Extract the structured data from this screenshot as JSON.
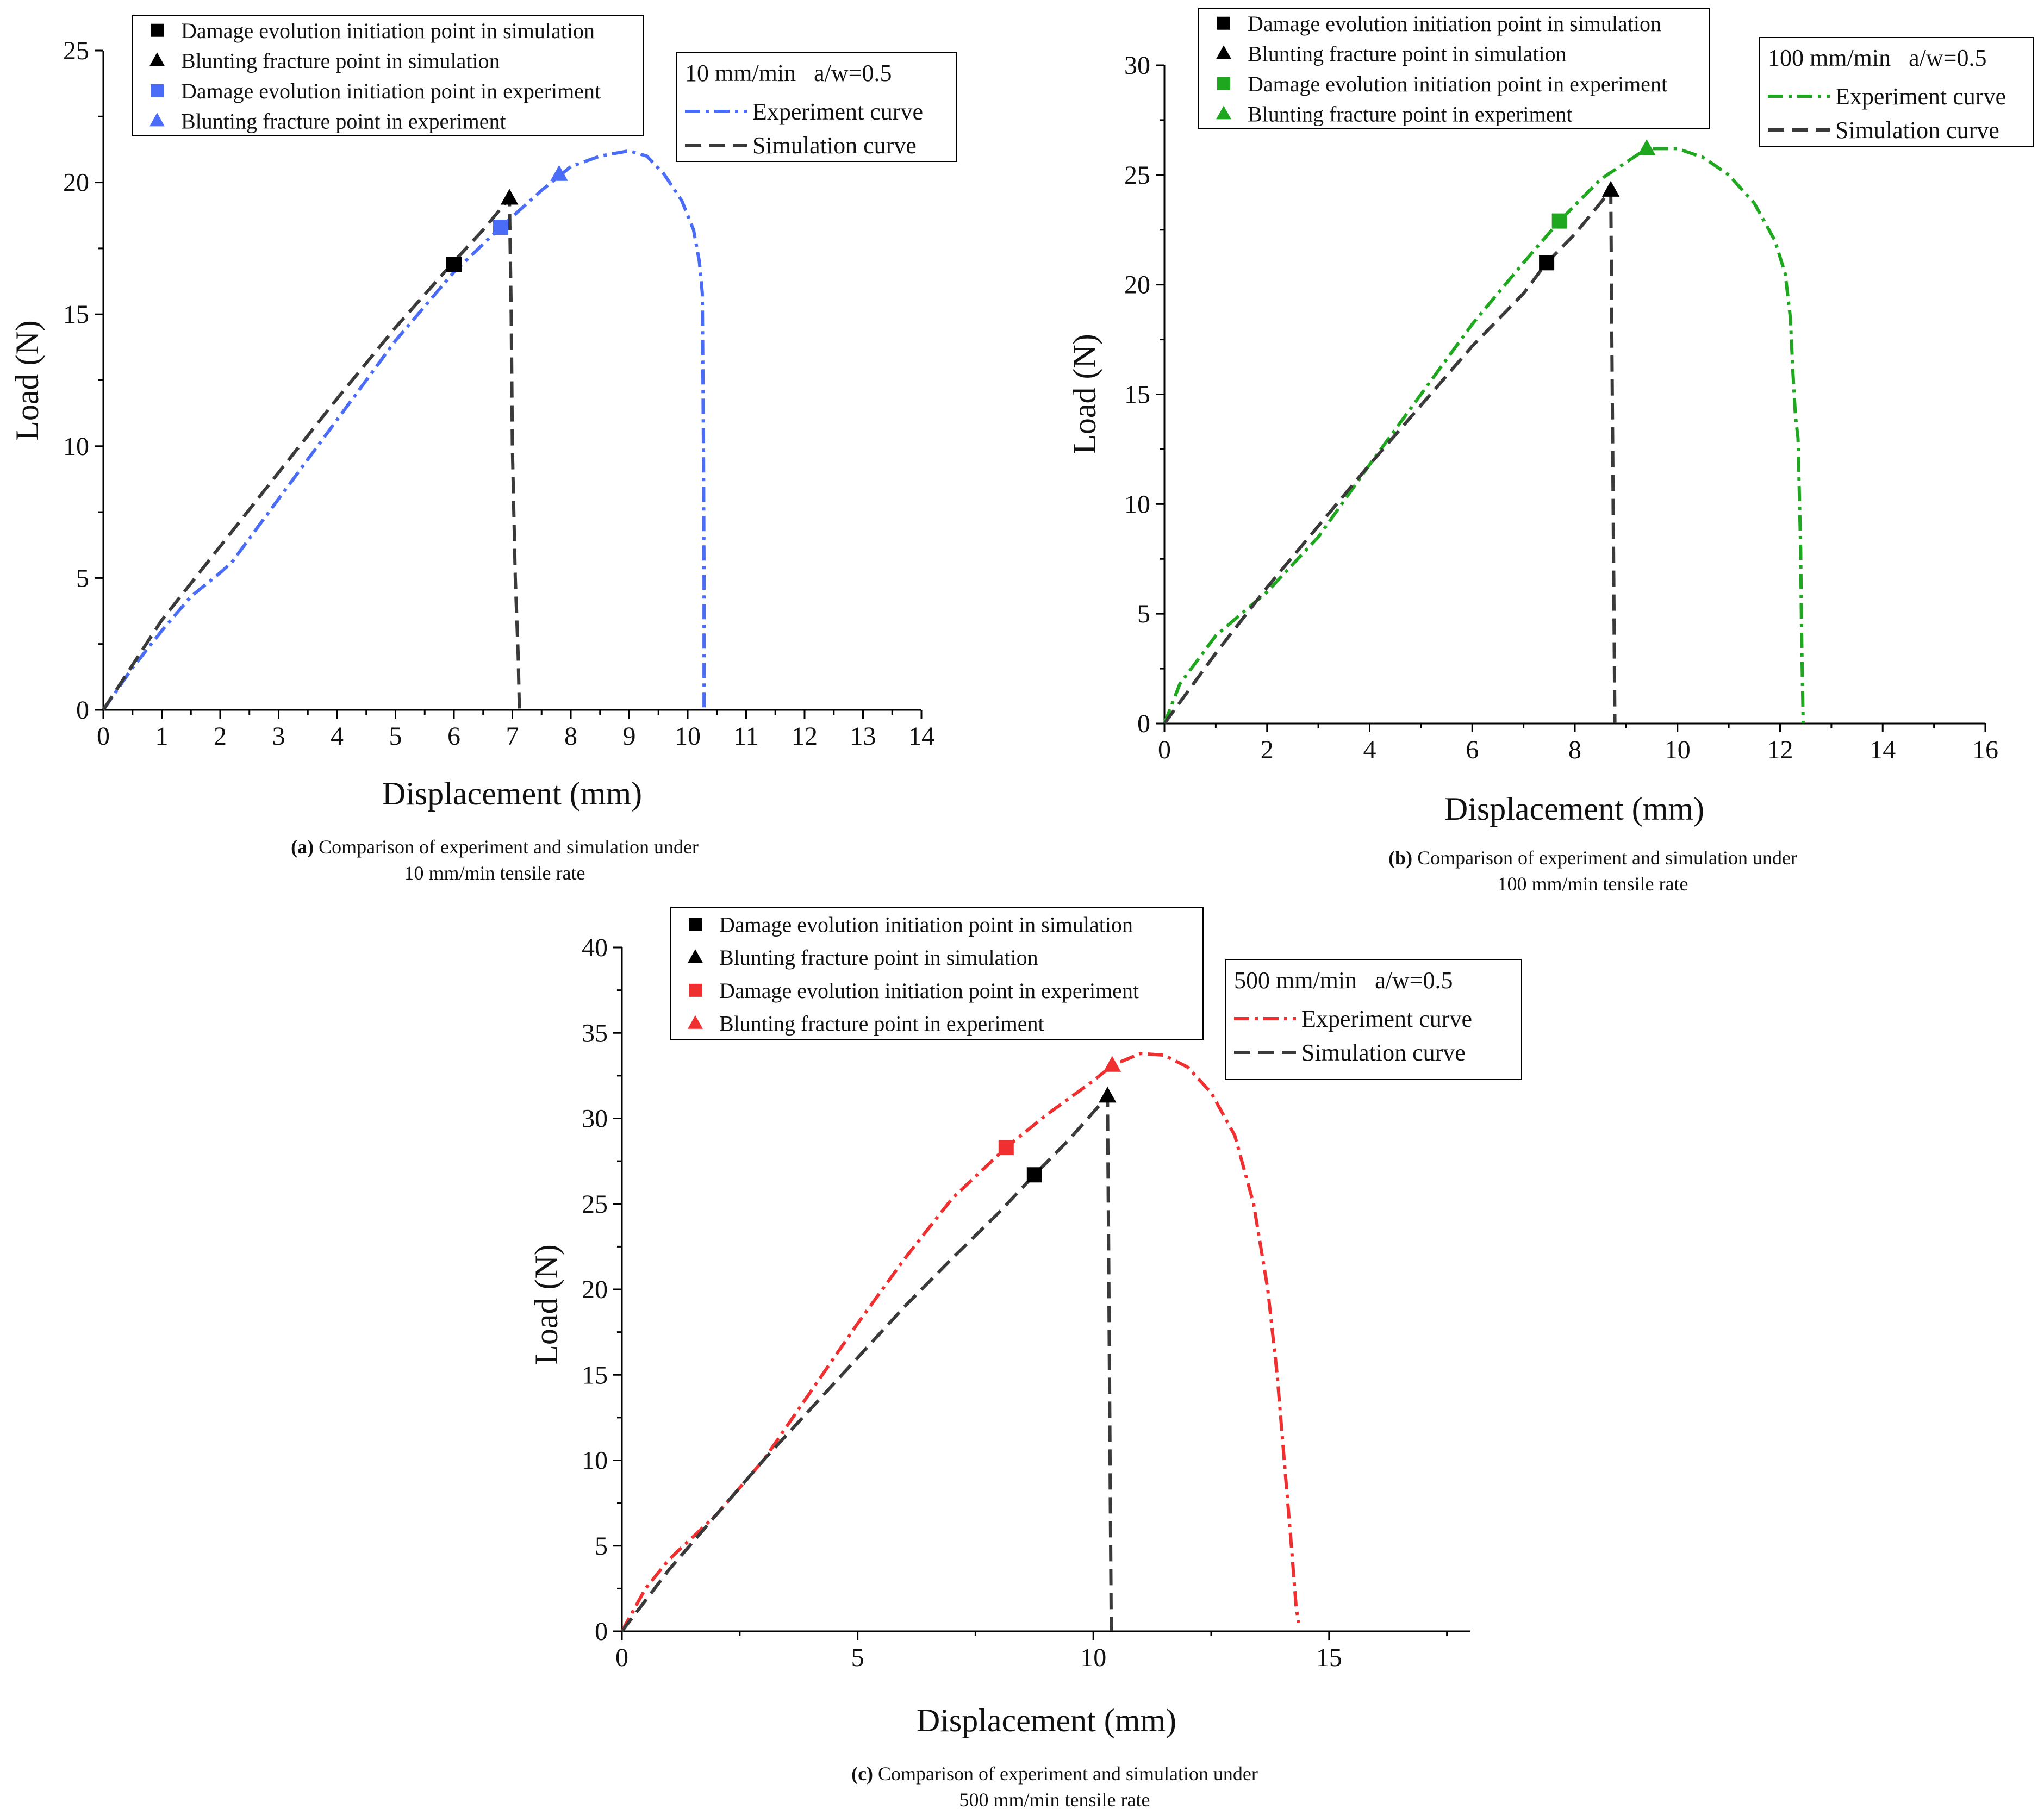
{
  "chart_data": [
    {
      "panel": "a",
      "type": "line",
      "xlabel": "Displacement (mm)",
      "ylabel": "Load (N)",
      "xlim": [
        0,
        14
      ],
      "ylim": [
        0,
        25
      ],
      "xticks": [
        0,
        1,
        2,
        3,
        4,
        5,
        6,
        7,
        8,
        9,
        10,
        11,
        12,
        13,
        14
      ],
      "yticks": [
        0,
        5,
        10,
        15,
        20,
        25
      ],
      "accent_color": "#4a6cf7",
      "info_title": "10 mm/min   a/w=0.5",
      "info_legend": [
        {
          "label": "Experiment curve",
          "style": "dashdot",
          "color": "#4a6cf7"
        },
        {
          "label": "Simulation curve",
          "style": "dash",
          "color": "#3a3a3a"
        }
      ],
      "marker_legend": [
        {
          "label": "Damage evolution initiation point in simulation",
          "marker": "square",
          "color": "#000000"
        },
        {
          "label": "Blunting fracture point in simulation",
          "marker": "triangle",
          "color": "#000000"
        },
        {
          "label": "Damage evolution initiation point in experiment",
          "marker": "square",
          "color": "#4a6cf7"
        },
        {
          "label": "Blunting fracture point in experiment",
          "marker": "triangle",
          "color": "#4a6cf7"
        }
      ],
      "series": [
        {
          "name": "Experiment curve",
          "color": "#4a6cf7",
          "style": "dashdot",
          "x": [
            0,
            0.5,
            1.0,
            1.5,
            2.0,
            2.2,
            3.0,
            4.0,
            5.0,
            6.0,
            6.8,
            7.5,
            8.0,
            8.5,
            9.0,
            9.3,
            9.6,
            9.9,
            10.1,
            10.2,
            10.25,
            10.27,
            10.28,
            10.28
          ],
          "y": [
            0,
            1.6,
            3.0,
            4.3,
            5.2,
            5.6,
            8.0,
            11.0,
            14.0,
            16.6,
            18.3,
            19.7,
            20.6,
            21.0,
            21.2,
            21.0,
            20.3,
            19.3,
            18.2,
            17.0,
            15.8,
            10.0,
            5.0,
            0
          ]
        },
        {
          "name": "Simulation curve",
          "color": "#3a3a3a",
          "style": "dash",
          "x": [
            0,
            1.0,
            2.0,
            3.0,
            4.0,
            5.0,
            6.0,
            6.5,
            6.95,
            6.98,
            7.0,
            7.05,
            7.1,
            7.12
          ],
          "y": [
            0,
            3.4,
            6.2,
            9.0,
            11.8,
            14.5,
            17.0,
            18.2,
            19.4,
            15.0,
            10.0,
            5.0,
            2.0,
            0
          ]
        }
      ],
      "markers": [
        {
          "name": "Damage evolution initiation point in simulation",
          "shape": "square",
          "color": "#000000",
          "x": 6.0,
          "y": 16.9
        },
        {
          "name": "Blunting fracture point in simulation",
          "shape": "triangle",
          "color": "#000000",
          "x": 6.95,
          "y": 19.4
        },
        {
          "name": "Damage evolution initiation point in experiment",
          "shape": "square",
          "color": "#4a6cf7",
          "x": 6.8,
          "y": 18.3
        },
        {
          "name": "Blunting fracture point in experiment",
          "shape": "triangle",
          "color": "#4a6cf7",
          "x": 7.8,
          "y": 20.3
        }
      ],
      "caption": {
        "tag": "(a)",
        "line1": " Comparison of experiment and simulation under",
        "line2": "10 mm/min tensile rate"
      }
    },
    {
      "panel": "b",
      "type": "line",
      "xlabel": "Displacement (mm)",
      "ylabel": "Load (N)",
      "xlim": [
        0,
        16
      ],
      "ylim": [
        0,
        30
      ],
      "xticks": [
        0,
        2,
        4,
        6,
        8,
        10,
        12,
        14,
        16
      ],
      "yticks": [
        0,
        5,
        10,
        15,
        20,
        25,
        30
      ],
      "accent_color": "#1fa81f",
      "info_title": "100 mm/min   a/w=0.5",
      "info_legend": [
        {
          "label": "Experiment curve",
          "style": "dashdot",
          "color": "#1fa81f"
        },
        {
          "label": "Simulation curve",
          "style": "dash",
          "color": "#3a3a3a"
        }
      ],
      "marker_legend": [
        {
          "label": "Damage evolution initiation point in simulation",
          "marker": "square",
          "color": "#000000"
        },
        {
          "label": "Blunting fracture point in simulation",
          "marker": "triangle",
          "color": "#000000"
        },
        {
          "label": "Damage evolution initiation point in experiment",
          "marker": "square",
          "color": "#1fa81f"
        },
        {
          "label": "Blunting fracture point in experiment",
          "marker": "triangle",
          "color": "#1fa81f"
        }
      ],
      "series": [
        {
          "name": "Experiment curve",
          "color": "#1fa81f",
          "style": "dashdot",
          "x": [
            0,
            0.3,
            1.0,
            2.0,
            3.0,
            4.0,
            5.0,
            6.0,
            7.0,
            7.7,
            8.5,
            9.4,
            10.0,
            10.5,
            11.0,
            11.5,
            11.9,
            12.1,
            12.2,
            12.25,
            12.3,
            12.35,
            12.4,
            12.42,
            12.45
          ],
          "y": [
            0,
            1.8,
            4.0,
            6.0,
            8.5,
            11.8,
            15.0,
            18.2,
            21.0,
            22.9,
            24.8,
            26.2,
            26.2,
            25.8,
            25.0,
            23.7,
            22.0,
            20.5,
            18.5,
            16.0,
            14.0,
            13.0,
            8.0,
            4.0,
            0
          ]
        },
        {
          "name": "Simulation curve",
          "color": "#3a3a3a",
          "style": "dash",
          "x": [
            0,
            1.0,
            2.0,
            3.0,
            4.0,
            5.0,
            6.0,
            7.0,
            7.45,
            8.0,
            8.7,
            8.72,
            8.74,
            8.76,
            8.78
          ],
          "y": [
            0,
            3.2,
            6.2,
            9.0,
            11.8,
            14.5,
            17.2,
            19.6,
            21.0,
            22.3,
            24.3,
            18.0,
            12.0,
            6.0,
            0
          ]
        }
      ],
      "markers": [
        {
          "name": "Damage evolution initiation point in simulation",
          "shape": "square",
          "color": "#000000",
          "x": 7.45,
          "y": 21.0
        },
        {
          "name": "Blunting fracture point in simulation",
          "shape": "triangle",
          "color": "#000000",
          "x": 8.7,
          "y": 24.3
        },
        {
          "name": "Damage evolution initiation point in experiment",
          "shape": "square",
          "color": "#1fa81f",
          "x": 7.7,
          "y": 22.9
        },
        {
          "name": "Blunting fracture point in experiment",
          "shape": "triangle",
          "color": "#1fa81f",
          "x": 9.4,
          "y": 26.2
        }
      ],
      "caption": {
        "tag": "(b)",
        "line1": " Comparison of experiment and simulation under",
        "line2": "100 mm/min tensile rate"
      }
    },
    {
      "panel": "c",
      "type": "line",
      "xlabel": "Displacement (mm)",
      "ylabel": "Load (N)",
      "xlim": [
        0,
        18
      ],
      "ylim": [
        0,
        40
      ],
      "xticks": [
        0,
        5,
        10,
        15
      ],
      "yticks": [
        0,
        5,
        10,
        15,
        20,
        25,
        30,
        35,
        40
      ],
      "accent_color": "#f03030",
      "info_title": "500 mm/min   a/w=0.5",
      "info_legend": [
        {
          "label": "Experiment curve",
          "style": "dashdot",
          "color": "#f03030"
        },
        {
          "label": "Simulation curve",
          "style": "dash",
          "color": "#3a3a3a"
        }
      ],
      "marker_legend": [
        {
          "label": "Damage evolution initiation point in simulation",
          "marker": "square",
          "color": "#000000"
        },
        {
          "label": "Blunting fracture point in simulation",
          "marker": "triangle",
          "color": "#000000"
        },
        {
          "label": "Damage evolution initiation point in experiment",
          "marker": "square",
          "color": "#f03030"
        },
        {
          "label": "Blunting fracture point in experiment",
          "marker": "triangle",
          "color": "#f03030"
        }
      ],
      "series": [
        {
          "name": "Experiment curve",
          "color": "#f03030",
          "style": "dashdot",
          "x": [
            0,
            0.5,
            1.0,
            2.0,
            3.0,
            4.0,
            5.0,
            6.0,
            7.0,
            8.15,
            9.0,
            10.0,
            10.4,
            11.0,
            11.5,
            12.0,
            12.5,
            13.0,
            13.4,
            13.7,
            13.9,
            14.05,
            14.2,
            14.3,
            14.35
          ],
          "y": [
            0,
            2.5,
            4.2,
            6.8,
            10.0,
            14.0,
            18.0,
            21.8,
            25.3,
            28.3,
            30.2,
            32.2,
            33.1,
            33.8,
            33.7,
            33.0,
            31.5,
            29.0,
            25.0,
            20.0,
            15.0,
            10.0,
            5.0,
            1.5,
            0.5
          ]
        },
        {
          "name": "Simulation curve",
          "color": "#3a3a3a",
          "style": "dash",
          "x": [
            0,
            1.0,
            2.0,
            3.0,
            4.0,
            5.0,
            6.0,
            7.0,
            8.0,
            8.75,
            9.5,
            10.3,
            10.32,
            10.34,
            10.36,
            10.38
          ],
          "y": [
            0,
            3.6,
            6.8,
            10.0,
            13.0,
            16.0,
            19.0,
            21.8,
            24.5,
            26.7,
            28.8,
            31.3,
            24.0,
            16.0,
            8.0,
            0
          ]
        }
      ],
      "markers": [
        {
          "name": "Damage evolution initiation point in simulation",
          "shape": "square",
          "color": "#000000",
          "x": 8.75,
          "y": 26.7
        },
        {
          "name": "Blunting fracture point in simulation",
          "shape": "triangle",
          "color": "#000000",
          "x": 10.3,
          "y": 31.3
        },
        {
          "name": "Damage evolution initiation point in experiment",
          "shape": "square",
          "color": "#f03030",
          "x": 8.15,
          "y": 28.3
        },
        {
          "name": "Blunting fracture point in experiment",
          "shape": "triangle",
          "color": "#f03030",
          "x": 10.4,
          "y": 33.1
        }
      ],
      "caption": {
        "tag": "(c)",
        "line1": " Comparison of experiment and simulation under",
        "line2": "500 mm/min tensile rate"
      }
    }
  ]
}
